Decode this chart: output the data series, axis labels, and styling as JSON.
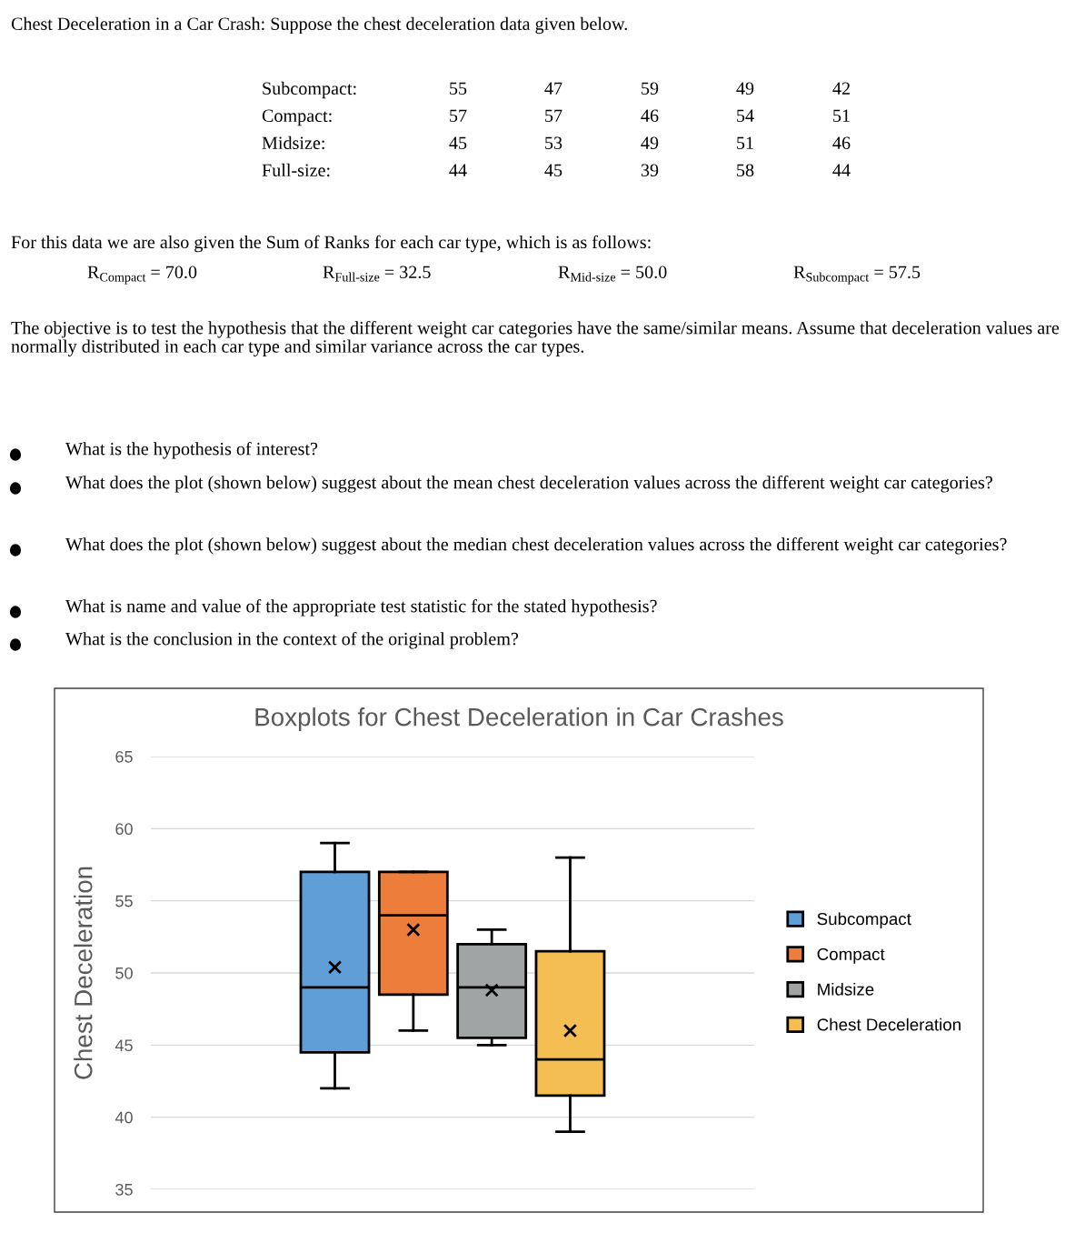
{
  "chart_data": {
    "type": "box",
    "title": "Boxplots for Chest Deceleration in Car Crashes",
    "ylabel": "Chest Deceleration",
    "categories": [
      null
    ],
    "series": [
      {
        "name": "Subcompact",
        "color": "#5f9ed6",
        "boxes": [
          {
            "low": 42,
            "q1": 44.5,
            "median": 49,
            "q3": 57,
            "high": 59,
            "mean": 50.4
          }
        ]
      },
      {
        "name": "Compact",
        "color": "#ed7d3a",
        "boxes": [
          {
            "low": 46,
            "q1": 48.5,
            "median": 54,
            "q3": 57,
            "high": 57,
            "mean": 53
          }
        ]
      },
      {
        "name": "Midsize",
        "color": "#a0a4a4",
        "boxes": [
          {
            "low": 45,
            "q1": 45.5,
            "median": 49,
            "q3": 52,
            "high": 53,
            "mean": 48.8
          }
        ]
      },
      {
        "name": "Chest Deceleration",
        "color": "#f4be52",
        "boxes": [
          {
            "low": 39,
            "q1": 41.5,
            "median": 44,
            "q3": 51.5,
            "high": 58,
            "mean": 46
          }
        ]
      }
    ],
    "ylim": [
      35,
      65
    ],
    "yticks": [
      35,
      40,
      45,
      50,
      55,
      60,
      65
    ],
    "grid": "y",
    "legend": "right",
    "annotations": [
      "Chest Deceleration in a Car Crash: Suppose the chest deceleration data given below.",
      "Subcompact: 55 47 59 49 42",
      "Compact: 57 57 46 54 51",
      "Midsize: 45 53 49 51 46",
      "Full-size: 44 45 39 58 44",
      "For this data we are also given the Sum of Ranks for each car type, which is as follows:",
      "R$_{Compact}$ = 70.0",
      "R$_{Full-size}$ = 32.5",
      "R$_{Mid-size}$ = 50.0",
      "R$_{Subcompact}$ = 57.5",
      "The objective is to test the hypothesis that the different weight car categories have the same/similar means. Assume that deceleration values are normally distributed in each car type and similar variance across the car types.",
      "What is the hypothesis of interest?",
      "What does the plot (shown below) suggest about the mean chest deceleration values across the different weight car categories?",
      "What does the plot (shown below) suggest about the median chest deceleration values across the different weight car categories?",
      "What is name and value of the appropriate test statistic for the stated hypothesis?",
      "What is the conclusion in the context of the original problem?"
    ]
  }
}
